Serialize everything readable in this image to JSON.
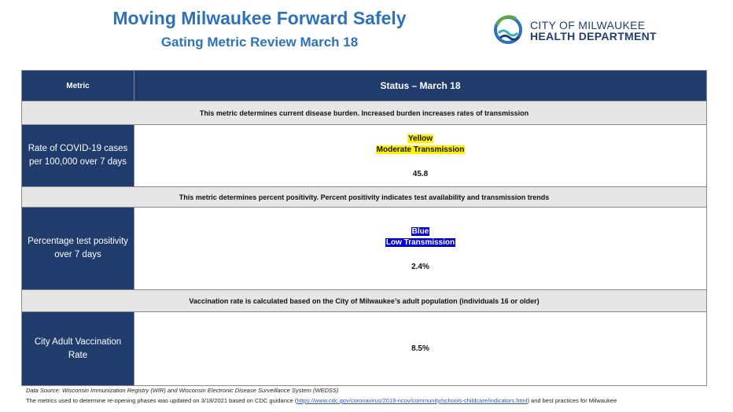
{
  "header": {
    "title": "Moving Milwaukee Forward Safely",
    "subtitle": "Gating Metric Review March 18"
  },
  "logo": {
    "line1": "CITY OF MILWAUKEE",
    "line2": "HEALTH DEPARTMENT",
    "colors": {
      "navy": "#1f3f74",
      "green": "#5aa84a",
      "blue": "#2e73b8",
      "teal": "#3bb0b4"
    }
  },
  "table": {
    "col_metric": "Metric",
    "col_status": "Status – March 18",
    "rows": [
      {
        "note": "This metric determines current disease burden. Increased burden increases rates of transmission",
        "label": "Rate of COVID-19 cases per 100,000 over 7 days",
        "status_color": "Yellow",
        "status_text": "Moderate Transmission",
        "value": "45.8",
        "highlight": "#fff200"
      },
      {
        "note": "This metric determines percent positivity. Percent positivity indicates test availability and transmission trends",
        "label": "Percentage test positivity over 7 days",
        "status_color": "Blue",
        "status_text": "Low Transmission",
        "value": "2.4%",
        "highlight": "#0000d8"
      },
      {
        "note": "Vaccination rate is calculated based on the City of Milwaukee’s adult population (individuals 16 or older)",
        "label": "City Adult Vaccination Rate",
        "value": "8.5%"
      }
    ]
  },
  "footer": {
    "source": "Data Source: Wisconsin Immunization Registry (WIR) and Wisconsin Electronic Disease Surveillance System (WEDSS)",
    "note_before": "The metrics used to determine re-opening phases was updated on 3/18/2021 based on CDC guidance (",
    "link": "https://www.cdc.gov/coronavirus/2019-ncov/community/schools-childcare/indicators.html",
    "note_after": ") and best practices for Milwaukee"
  }
}
